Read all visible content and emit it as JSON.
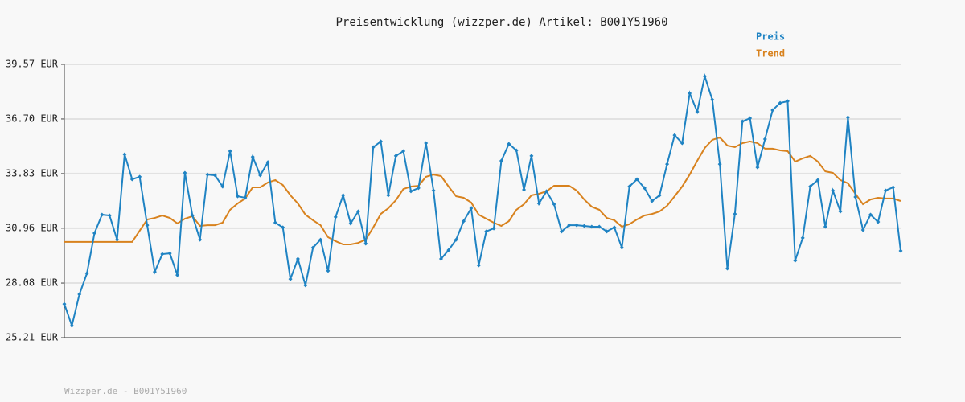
{
  "chart_data": {
    "type": "line",
    "title": "Preisentwicklung (wizzper.de) Artikel: B001Y51960",
    "footer": "Wizzper.de - B001Y51960",
    "ylim": [
      25.21,
      39.57
    ],
    "yticks": [
      {
        "value": 25.21,
        "label": "25.21 EUR"
      },
      {
        "value": 28.08,
        "label": "28.08 EUR"
      },
      {
        "value": 30.96,
        "label": "30.96 EUR"
      },
      {
        "value": 33.83,
        "label": "33.83 EUR"
      },
      {
        "value": 36.7,
        "label": "36.70 EUR"
      },
      {
        "value": 39.57,
        "label": "39.57 EUR"
      }
    ],
    "grid": true,
    "legend": "top-right",
    "series": [
      {
        "name": "Preis",
        "color": "#1f83c3",
        "markers": true,
        "values": [
          26.98,
          25.84,
          27.49,
          28.59,
          30.7,
          31.67,
          31.63,
          30.36,
          34.84,
          33.53,
          33.66,
          31.12,
          28.67,
          29.6,
          29.64,
          28.5,
          33.87,
          31.63,
          30.36,
          33.78,
          33.74,
          33.15,
          35.01,
          32.64,
          32.56,
          34.71,
          33.74,
          34.42,
          31.25,
          31.0,
          28.29,
          29.35,
          27.96,
          29.94,
          30.36,
          28.72,
          31.55,
          32.69,
          31.21,
          31.84,
          30.15,
          35.22,
          35.52,
          32.69,
          34.76,
          35.01,
          32.9,
          33.07,
          35.43,
          32.94,
          29.35,
          29.81,
          30.36,
          31.33,
          32.01,
          29.01,
          30.79,
          30.95,
          34.5,
          35.39,
          35.05,
          32.98,
          34.76,
          32.26,
          32.9,
          32.22,
          30.79,
          31.12,
          31.12,
          31.08,
          31.04,
          31.04,
          30.79,
          31.0,
          29.94,
          33.15,
          33.53,
          33.07,
          32.39,
          32.69,
          34.33,
          35.85,
          35.43,
          38.05,
          37.08,
          38.94,
          37.71,
          34.33,
          28.84,
          31.71,
          36.57,
          36.74,
          34.16,
          35.64,
          37.16,
          37.54,
          37.63,
          29.26,
          30.45,
          33.15,
          33.49,
          31.04,
          32.94,
          31.84,
          36.78,
          32.6,
          30.87,
          31.67,
          31.29,
          32.94,
          33.11,
          29.77
        ]
      },
      {
        "name": "Trend",
        "color": "#d8821e",
        "markers": false,
        "values": [
          30.24,
          30.24,
          30.24,
          30.24,
          30.24,
          30.24,
          30.24,
          30.24,
          30.24,
          30.24,
          30.83,
          31.42,
          31.5,
          31.63,
          31.5,
          31.21,
          31.46,
          31.59,
          31.08,
          31.12,
          31.12,
          31.25,
          31.93,
          32.26,
          32.52,
          33.11,
          33.11,
          33.36,
          33.49,
          33.23,
          32.69,
          32.26,
          31.67,
          31.38,
          31.12,
          30.49,
          30.28,
          30.11,
          30.11,
          30.19,
          30.36,
          31.0,
          31.71,
          32.01,
          32.43,
          33.02,
          33.15,
          33.19,
          33.66,
          33.78,
          33.7,
          33.15,
          32.64,
          32.56,
          32.31,
          31.67,
          31.46,
          31.25,
          31.08,
          31.33,
          31.93,
          32.22,
          32.69,
          32.77,
          32.9,
          33.19,
          33.19,
          33.19,
          32.94,
          32.47,
          32.09,
          31.93,
          31.5,
          31.38,
          31.04,
          31.17,
          31.42,
          31.63,
          31.71,
          31.84,
          32.14,
          32.64,
          33.15,
          33.78,
          34.5,
          35.18,
          35.6,
          35.73,
          35.3,
          35.22,
          35.43,
          35.52,
          35.43,
          35.14,
          35.14,
          35.05,
          35.01,
          34.46,
          34.63,
          34.76,
          34.46,
          33.95,
          33.87,
          33.49,
          33.32,
          32.77,
          32.22,
          32.47,
          32.56,
          32.52,
          32.52,
          32.39
        ]
      }
    ]
  }
}
